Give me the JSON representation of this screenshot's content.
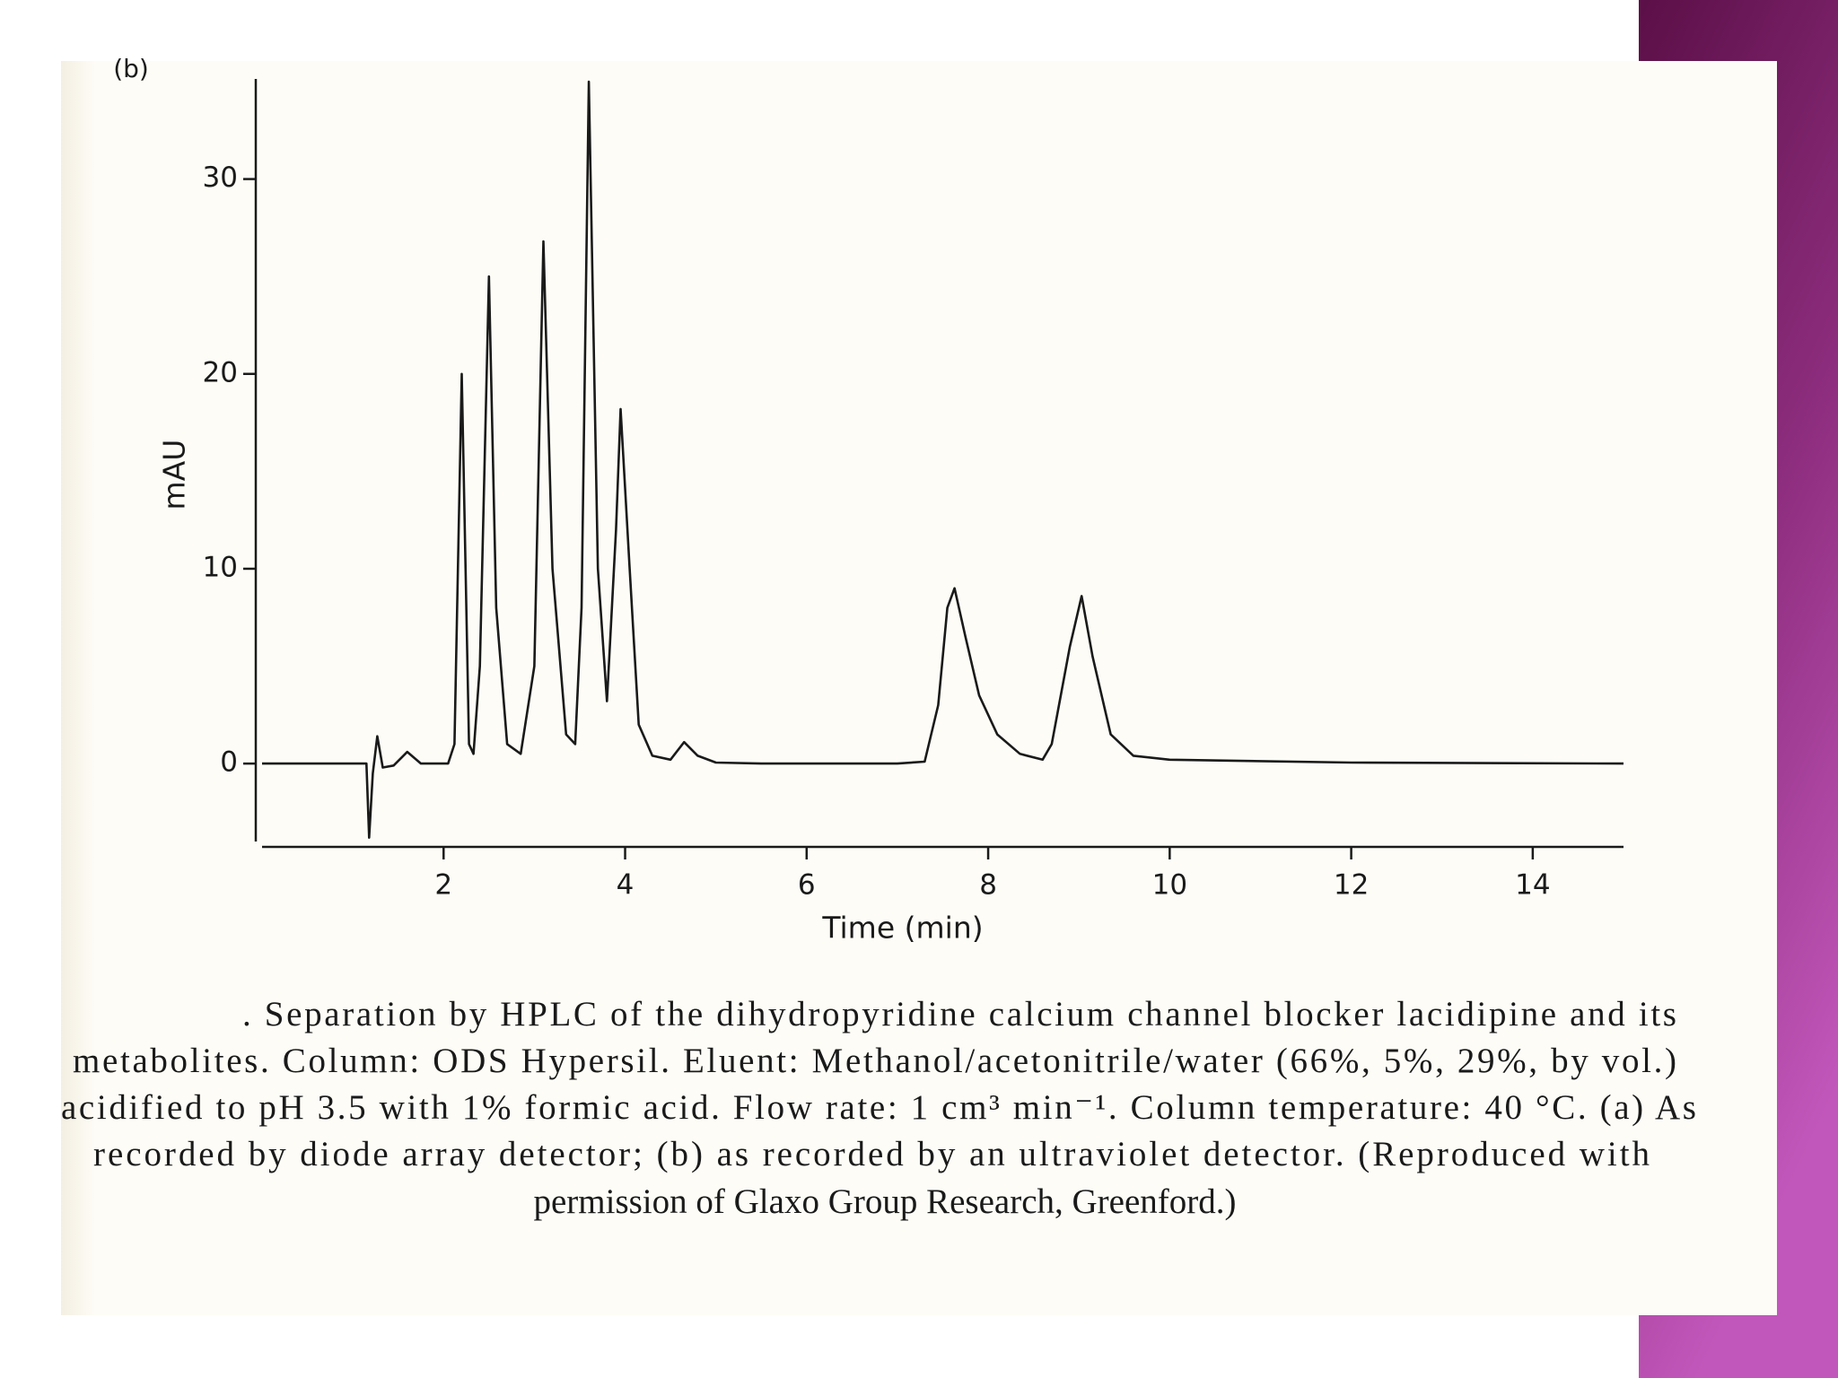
{
  "chart_data": {
    "type": "line",
    "panel_label": "(b)",
    "xlabel": "Time (min)",
    "ylabel": "mAU",
    "color": "#1a1a1a",
    "x": [
      0,
      1.15,
      1.18,
      1.22,
      1.27,
      1.33,
      1.45,
      1.6,
      1.75,
      2.05,
      2.12,
      2.2,
      2.28,
      2.33,
      2.4,
      2.5,
      2.58,
      2.7,
      2.85,
      3.0,
      3.1,
      3.2,
      3.35,
      3.45,
      3.52,
      3.6,
      3.7,
      3.8,
      3.9,
      3.95,
      4.05,
      4.15,
      4.3,
      4.5,
      4.65,
      4.8,
      5.0,
      5.5,
      7.0,
      7.3,
      7.45,
      7.55,
      7.63,
      7.75,
      7.9,
      8.1,
      8.35,
      8.6,
      8.7,
      8.9,
      9.03,
      9.15,
      9.35,
      9.6,
      10.0,
      12,
      15
    ],
    "values": [
      0,
      0,
      -3.8,
      -0.5,
      1.4,
      -0.2,
      -0.1,
      0.6,
      0,
      0,
      1,
      20,
      1,
      0.5,
      5,
      25,
      8,
      1,
      0.5,
      5,
      26.8,
      10,
      1.5,
      1,
      8,
      35,
      10,
      3.2,
      12,
      18.2,
      10,
      2,
      0.4,
      0.2,
      1.1,
      0.4,
      0.05,
      0,
      0,
      0.1,
      3,
      8,
      9,
      6.5,
      3.5,
      1.5,
      0.5,
      0.2,
      1,
      6,
      8.6,
      5.5,
      1.5,
      0.4,
      0.2,
      0.05,
      0
    ],
    "xlim": [
      0,
      15
    ],
    "xticks": [
      2,
      4,
      6,
      8,
      10,
      12,
      14
    ],
    "ylim": [
      -4,
      35
    ],
    "yticks": [
      0,
      10,
      20,
      30
    ]
  },
  "caption": [
    ". Separation by HPLC of the dihydropyridine calcium channel blocker lacidipine and its",
    "metabolites. Column: ODS Hypersil. Eluent: Methanol/acetonitrile/water (66%, 5%, 29%, by vol.)",
    "acidified to pH 3.5 with 1% formic acid. Flow rate: 1 cm³ min⁻¹. Column temperature: 40 °C. (a) As",
    "recorded by diode array detector; (b) as recorded by an ultraviolet detector. (Reproduced with",
    "permission of Glaxo Group Research, Greenford.)"
  ]
}
